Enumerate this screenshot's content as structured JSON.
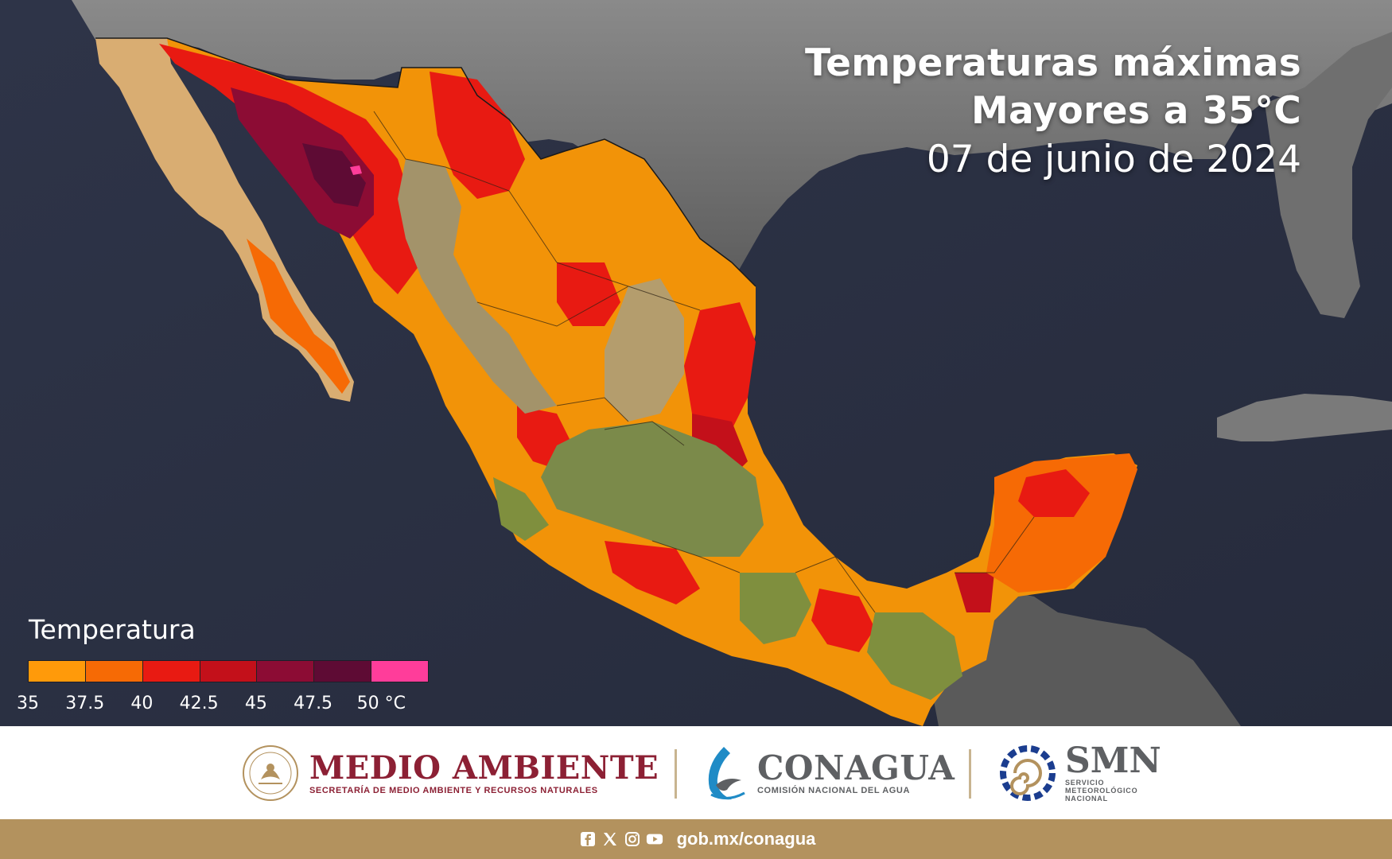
{
  "title": {
    "line1": "Temperaturas máximas",
    "line2": "Mayores a 35°C",
    "date": "07 de junio de 2024"
  },
  "legend": {
    "title": "Temperatura",
    "unit": "°C",
    "bins": [
      {
        "from": 35,
        "to": 37.5,
        "color": "#ff9a0a"
      },
      {
        "from": 37.5,
        "to": 40,
        "color": "#f66a05"
      },
      {
        "from": 40,
        "to": 42.5,
        "color": "#e81a12"
      },
      {
        "from": 42.5,
        "to": 45,
        "color": "#c3101a"
      },
      {
        "from": 45,
        "to": 47.5,
        "color": "#8c0c34"
      },
      {
        "from": 47.5,
        "to": 50,
        "color": "#5e0b34"
      },
      {
        "from": 50,
        "to": null,
        "color": "#ff3d9a"
      }
    ],
    "labels": [
      "35",
      "37.5",
      "40",
      "42.5",
      "45",
      "47.5",
      "50 °C"
    ]
  },
  "footer": {
    "medio_ambiente": {
      "name": "MEDIO AMBIENTE",
      "subtitle": "SECRETARÍA DE MEDIO AMBIENTE Y RECURSOS NATURALES"
    },
    "conagua": {
      "name": "CONAGUA",
      "subtitle": "COMISIÓN NACIONAL DEL AGUA"
    },
    "smn": {
      "name": "SMN",
      "subtitle": "SERVICIO METEOROLÓGICO NACIONAL"
    },
    "social_icons": [
      "facebook-icon",
      "x-icon",
      "instagram-icon",
      "youtube-icon"
    ],
    "website": "gob.mx/conagua"
  },
  "colors": {
    "ocean": "#2c3245",
    "land_outside": "#6e6e6e",
    "brand_guinda": "#8c2034",
    "brand_gold": "#b3925e"
  }
}
